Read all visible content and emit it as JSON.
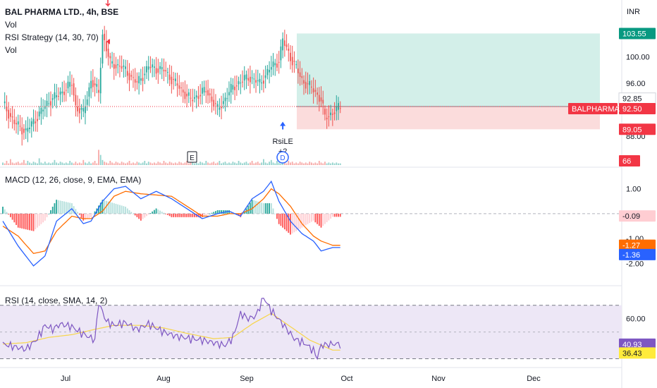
{
  "header": {
    "title": "BAL PHARMA LTD., 4h, BSE",
    "indicator_vol": "Vol",
    "indicator_strategy": "RSI Strategy (14, 30, 70)",
    "indicator_vol2": "Vol",
    "macd_label": "MACD (12, 26, close, 9, EMA, EMA)",
    "rsi_label": "RSI (14, close, SMA, 14, 2)"
  },
  "colors": {
    "up": "#26a69a",
    "down": "#ef5350",
    "profit_zone": "#d3efe9",
    "loss_zone": "#fbdcdc",
    "macd_line": "#2962ff",
    "signal_line": "#ff6d00",
    "rsi_line": "#7e57c2",
    "rsi_ma": "#f7d54a",
    "rsi_band": "#ede7f6",
    "accent_green": "#089981",
    "accent_red": "#f23645",
    "accent_blue": "#2962ff",
    "accent_yellow": "#ffeb3b",
    "accent_orange": "#ff6d00"
  },
  "chart_data": [
    {
      "type": "candlestick",
      "currency_label": "INR",
      "x_ticks": [
        "Jul",
        "Aug",
        "Sep",
        "Oct",
        "Nov",
        "Dec"
      ],
      "y_ticks": [
        "100.00",
        "96.00",
        "88.00"
      ],
      "ylim": [
        86.2,
        106.8
      ],
      "key_points": [
        [
          0,
          93
        ],
        [
          6,
          90
        ],
        [
          12,
          88.7
        ],
        [
          18,
          91
        ],
        [
          24,
          93.3
        ],
        [
          30,
          94.5
        ],
        [
          36,
          96
        ],
        [
          38,
          92.5
        ],
        [
          42,
          91.5
        ],
        [
          46,
          96.5
        ],
        [
          50,
          94.5
        ],
        [
          52,
          103.5
        ],
        [
          56,
          99
        ],
        [
          62,
          98.5
        ],
        [
          70,
          96
        ],
        [
          76,
          98.5
        ],
        [
          84,
          98
        ],
        [
          90,
          96
        ],
        [
          98,
          93.5
        ],
        [
          106,
          95
        ],
        [
          112,
          92
        ],
        [
          120,
          95.5
        ],
        [
          128,
          97
        ],
        [
          134,
          96
        ],
        [
          140,
          98.5
        ],
        [
          144,
          99.5
        ],
        [
          146,
          102.5
        ],
        [
          150,
          100
        ],
        [
          156,
          96.5
        ],
        [
          162,
          95
        ],
        [
          166,
          93.5
        ],
        [
          168,
          90.8
        ],
        [
          170,
          91.2
        ],
        [
          174,
          92
        ],
        [
          176,
          92.5
        ]
      ],
      "volumes": [
        3,
        2,
        5,
        2,
        7,
        3,
        2,
        3,
        4,
        2,
        3,
        6,
        2,
        5,
        3,
        2,
        4,
        3,
        2,
        8,
        3,
        2,
        4,
        2,
        3,
        2,
        3,
        6,
        3,
        2,
        4,
        3,
        2,
        3,
        2,
        5,
        3,
        2,
        4,
        2,
        3,
        2,
        6,
        3,
        2,
        4,
        2,
        3,
        5,
        2,
        18,
        12,
        6,
        4,
        3,
        2,
        5,
        3,
        2,
        4,
        3,
        2,
        4,
        3,
        2,
        3,
        5,
        2,
        3,
        2,
        4,
        3,
        2,
        3,
        5,
        2,
        4,
        3,
        2,
        3,
        2,
        4,
        3,
        2,
        5,
        3,
        2,
        4,
        3,
        2,
        3,
        2,
        4,
        3,
        2,
        3,
        5,
        2,
        4,
        3,
        2,
        3,
        2,
        4,
        3,
        2,
        5,
        3,
        2,
        3,
        4,
        2,
        3,
        5,
        2,
        3,
        4,
        2,
        3,
        2,
        4,
        3,
        2,
        5,
        3,
        2,
        3,
        4,
        2,
        3,
        5,
        2,
        3,
        4,
        2,
        3,
        7,
        3,
        2,
        4,
        6,
        3,
        2,
        5,
        3,
        2,
        4,
        3,
        2,
        5,
        3,
        4,
        2,
        3,
        2,
        4,
        3,
        2,
        3,
        2,
        4,
        3,
        2,
        3,
        2,
        5,
        3,
        2,
        4,
        2,
        3,
        2,
        3,
        2,
        3,
        2,
        2
      ],
      "trade": {
        "entry": 92.5,
        "target": 103.55,
        "stop": 89.05,
        "entry_index": 146,
        "entry_label": "RsiLE",
        "entry_sub_label": "+2"
      },
      "price_badges": {
        "target": "103.55",
        "high": "92.85",
        "symbol": "BALPHARMA",
        "last": "92.50",
        "stop": "89.05",
        "volume": "66"
      },
      "event_markers": [
        "E",
        "D"
      ]
    },
    {
      "type": "line",
      "name": "MACD",
      "y_ticks": [
        "1.00",
        "-1.00",
        "-2.00"
      ],
      "ylim": [
        -2.3,
        1.5
      ],
      "series": [
        {
          "name": "MACD",
          "key_points": [
            [
              0,
              -0.3
            ],
            [
              8,
              -1.3
            ],
            [
              16,
              -2.1
            ],
            [
              22,
              -1.7
            ],
            [
              28,
              -0.3
            ],
            [
              36,
              0.2
            ],
            [
              42,
              -0.4
            ],
            [
              46,
              -0.3
            ],
            [
              52,
              0.5
            ],
            [
              58,
              1.0
            ],
            [
              64,
              1.1
            ],
            [
              72,
              0.6
            ],
            [
              80,
              0.9
            ],
            [
              88,
              0.6
            ],
            [
              96,
              0.2
            ],
            [
              104,
              -0.2
            ],
            [
              112,
              0.0
            ],
            [
              118,
              0.1
            ],
            [
              124,
              -0.1
            ],
            [
              130,
              0.6
            ],
            [
              136,
              0.9
            ],
            [
              140,
              1.3
            ],
            [
              144,
              0.5
            ],
            [
              150,
              -0.3
            ],
            [
              156,
              -0.8
            ],
            [
              162,
              -1.1
            ],
            [
              166,
              -1.5
            ],
            [
              172,
              -1.36
            ]
          ]
        },
        {
          "name": "Signal",
          "key_points": [
            [
              0,
              -0.5
            ],
            [
              8,
              -0.9
            ],
            [
              16,
              -1.6
            ],
            [
              22,
              -1.5
            ],
            [
              28,
              -0.7
            ],
            [
              36,
              -0.1
            ],
            [
              42,
              -0.2
            ],
            [
              46,
              -0.2
            ],
            [
              52,
              0.1
            ],
            [
              58,
              0.7
            ],
            [
              64,
              0.9
            ],
            [
              72,
              0.8
            ],
            [
              80,
              0.75
            ],
            [
              88,
              0.7
            ],
            [
              96,
              0.3
            ],
            [
              104,
              -0.1
            ],
            [
              112,
              -0.1
            ],
            [
              118,
              0.0
            ],
            [
              124,
              0.0
            ],
            [
              130,
              0.2
            ],
            [
              136,
              0.6
            ],
            [
              140,
              1.0
            ],
            [
              144,
              0.8
            ],
            [
              150,
              0.3
            ],
            [
              156,
              -0.4
            ],
            [
              162,
              -0.9
            ],
            [
              166,
              -1.1
            ],
            [
              172,
              -1.27
            ]
          ]
        }
      ],
      "histogram_last": -0.09,
      "badges": {
        "hist": "-0.09",
        "signal": "-1.27",
        "macd": "-1.36"
      }
    },
    {
      "type": "line",
      "name": "RSI",
      "y_ticks": [
        "60.00"
      ],
      "ylim": [
        25,
        82
      ],
      "bands": [
        70,
        30
      ],
      "mid": 50,
      "series": [
        {
          "name": "RSI",
          "key_points": [
            [
              0,
              41
            ],
            [
              6,
              39
            ],
            [
              12,
              37
            ],
            [
              18,
              45
            ],
            [
              22,
              55
            ],
            [
              26,
              52
            ],
            [
              30,
              56
            ],
            [
              36,
              54
            ],
            [
              40,
              50
            ],
            [
              44,
              47
            ],
            [
              48,
              44
            ],
            [
              50,
              72
            ],
            [
              54,
              58
            ],
            [
              58,
              55
            ],
            [
              64,
              57
            ],
            [
              70,
              52
            ],
            [
              76,
              56
            ],
            [
              84,
              50
            ],
            [
              90,
              47
            ],
            [
              98,
              45
            ],
            [
              104,
              44
            ],
            [
              110,
              42
            ],
            [
              116,
              40
            ],
            [
              120,
              46
            ],
            [
              124,
              64
            ],
            [
              128,
              60
            ],
            [
              132,
              62
            ],
            [
              136,
              76
            ],
            [
              140,
              66
            ],
            [
              146,
              56
            ],
            [
              152,
              45
            ],
            [
              158,
              41
            ],
            [
              162,
              36
            ],
            [
              164,
              31
            ],
            [
              166,
              40
            ],
            [
              172,
              41
            ]
          ]
        },
        {
          "name": "RSI MA",
          "key_points": [
            [
              0,
              41
            ],
            [
              12,
              42
            ],
            [
              24,
              46
            ],
            [
              36,
              48
            ],
            [
              48,
              52
            ],
            [
              58,
              55
            ],
            [
              72,
              55
            ],
            [
              84,
              53
            ],
            [
              96,
              49
            ],
            [
              110,
              45
            ],
            [
              120,
              46
            ],
            [
              130,
              56
            ],
            [
              140,
              64
            ],
            [
              150,
              54
            ],
            [
              160,
              44
            ],
            [
              172,
              36.43
            ]
          ]
        }
      ],
      "badges": {
        "rsi": "40.93",
        "ma": "36.43"
      }
    }
  ]
}
